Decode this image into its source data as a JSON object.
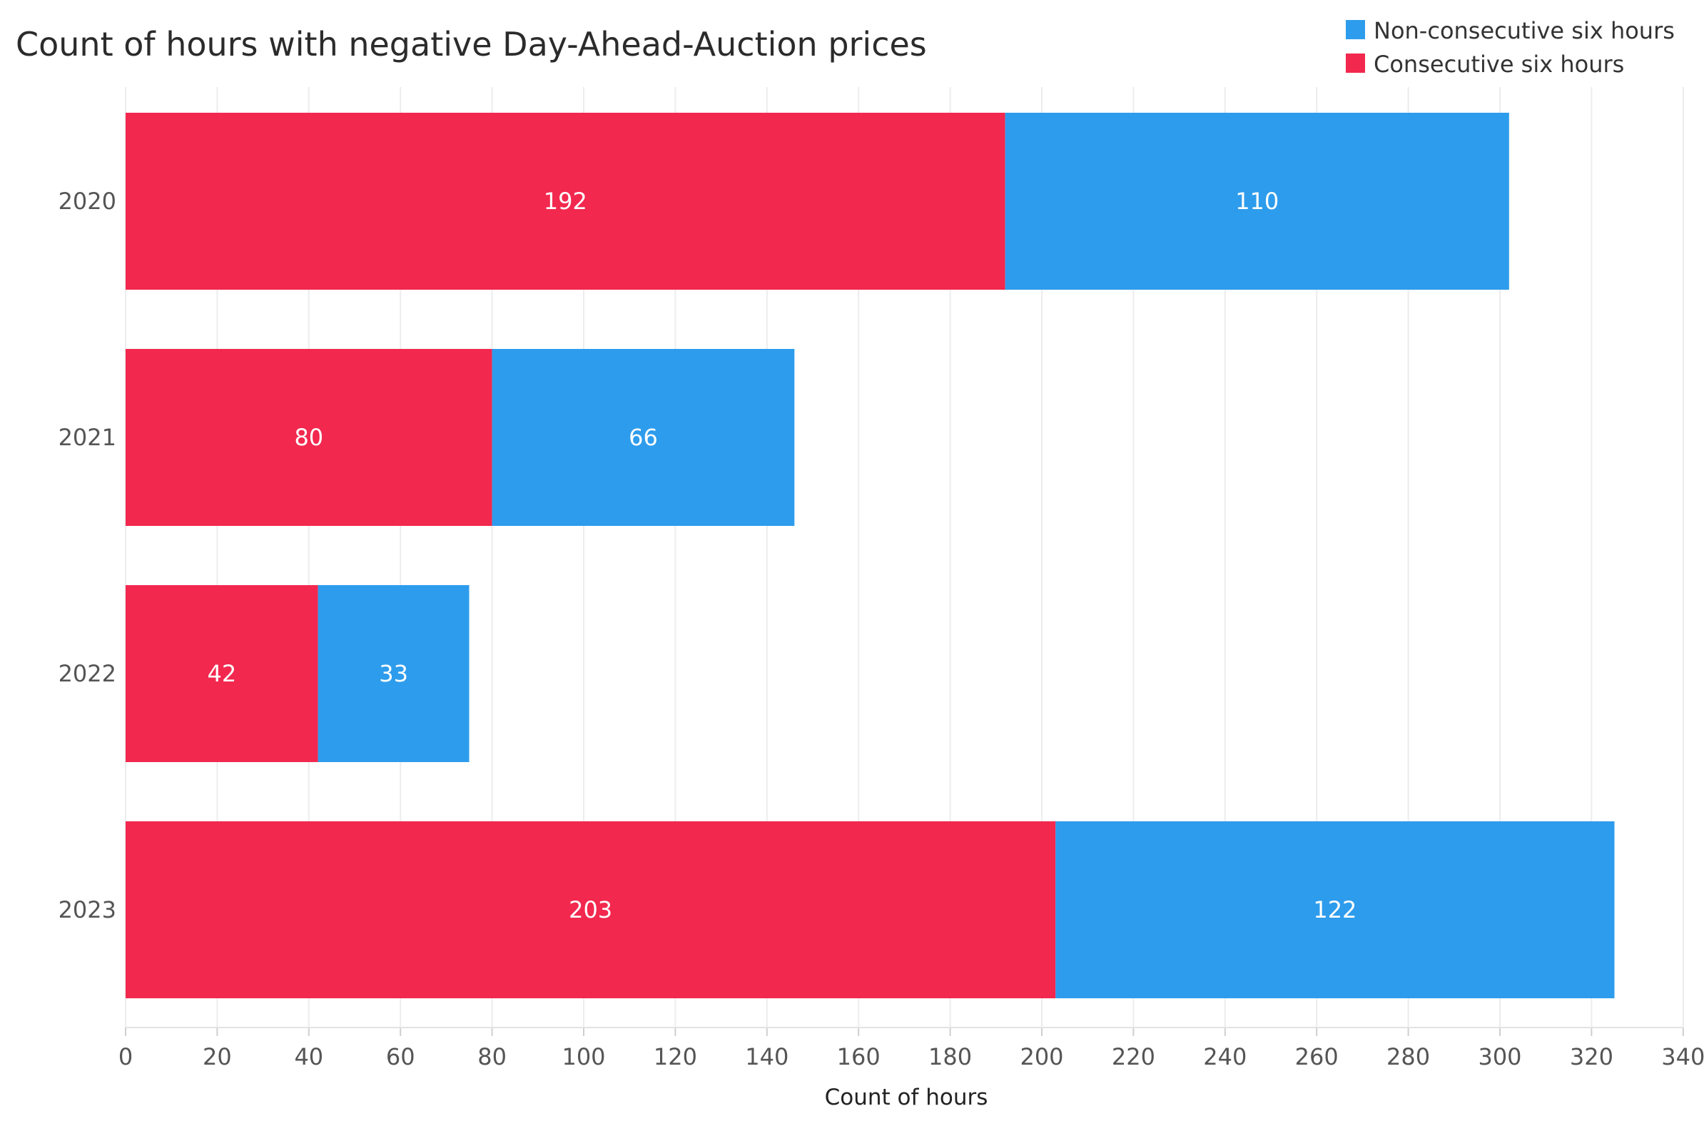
{
  "chart_data": {
    "type": "bar",
    "orientation": "horizontal",
    "stacked": true,
    "title": "Count of hours with negative Day-Ahead-Auction prices",
    "xlabel": "Count of hours",
    "ylabel": "",
    "categories": [
      "2020",
      "2021",
      "2022",
      "2023"
    ],
    "series": [
      {
        "name": "Consecutive six hours",
        "color": "#f2284e",
        "values": [
          192,
          80,
          42,
          203
        ]
      },
      {
        "name": "Non-consecutive six hours",
        "color": "#2e9cec",
        "values": [
          110,
          66,
          33,
          122
        ]
      }
    ],
    "xlim": [
      0,
      340
    ],
    "xticks": [
      0,
      20,
      40,
      60,
      80,
      100,
      120,
      140,
      160,
      180,
      200,
      220,
      240,
      260,
      280,
      300,
      320,
      340
    ],
    "grid": "vertical",
    "legend": {
      "placement": "top-right",
      "entries": [
        {
          "name": "Non-consecutive six hours",
          "color": "#2e9cec"
        },
        {
          "name": "Consecutive six hours",
          "color": "#f2284e"
        }
      ]
    }
  }
}
